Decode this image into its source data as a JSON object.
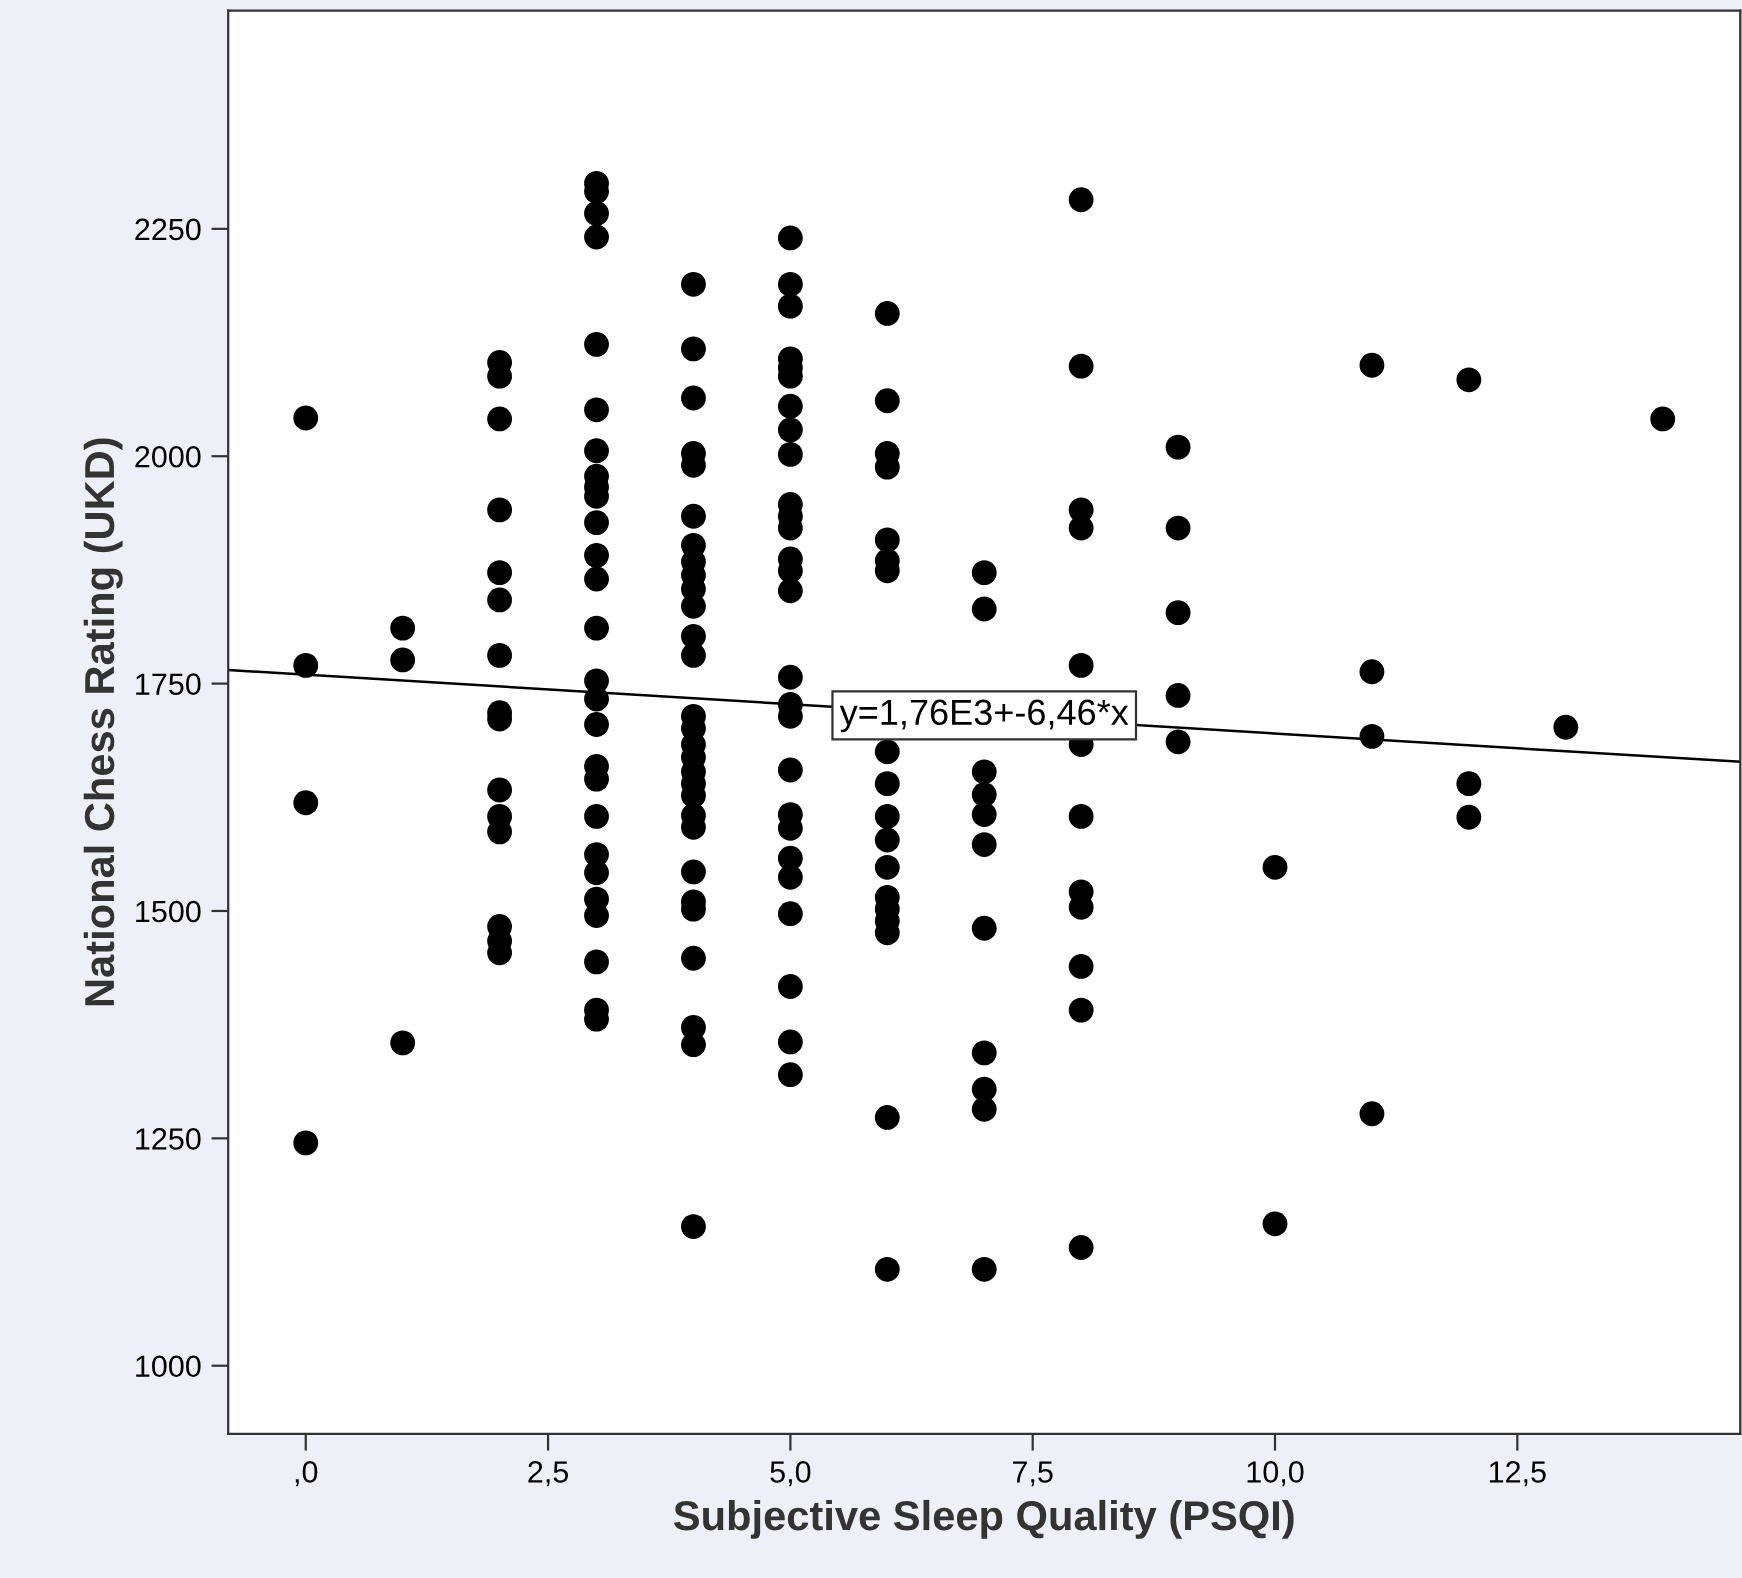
{
  "chart_data": {
    "type": "scatter",
    "xlabel": "Subjective Sleep Quality (PSQI)",
    "ylabel": "National Chess Rating (UKD)",
    "xlim": [
      -0.8,
      14.8
    ],
    "ylim": [
      925,
      2490
    ],
    "xticks": [
      {
        "value": 0,
        "label": ",0"
      },
      {
        "value": 2.5,
        "label": "2,5"
      },
      {
        "value": 5,
        "label": "5,0"
      },
      {
        "value": 7.5,
        "label": "7,5"
      },
      {
        "value": 10,
        "label": "10,0"
      },
      {
        "value": 12.5,
        "label": "12,5"
      }
    ],
    "yticks": [
      1000,
      1250,
      1500,
      1750,
      2000,
      2250
    ],
    "grid": false,
    "annotations": [
      {
        "text": "y=1,76E3+-6,46*x",
        "x": 7,
        "y": 1715
      }
    ],
    "series": [
      {
        "color": "#000000",
        "marker": "circle",
        "x": [
          0,
          0,
          0,
          0,
          1,
          1,
          1,
          2,
          2,
          2,
          2,
          2,
          2,
          2,
          2,
          2,
          2,
          2,
          2,
          2,
          2,
          2,
          3,
          3,
          3,
          3,
          3,
          3,
          3,
          3,
          3,
          3,
          3,
          3,
          3,
          3,
          3,
          3,
          3,
          3,
          3,
          3,
          3,
          3,
          3,
          3,
          3,
          3,
          3,
          4,
          4,
          4,
          4,
          4,
          4,
          4,
          4,
          4,
          4,
          4,
          4,
          4,
          4,
          4,
          4,
          4,
          4,
          4,
          4,
          4,
          4,
          4,
          4,
          4,
          4,
          4,
          4,
          4,
          5,
          5,
          5,
          5,
          5,
          5,
          5,
          5,
          5,
          5,
          5,
          5,
          5,
          5,
          5,
          5,
          5,
          5,
          5,
          5,
          5,
          5,
          5,
          5,
          5,
          5,
          5,
          6,
          6,
          6,
          6,
          6,
          6,
          6,
          6,
          6,
          6,
          6,
          6,
          6,
          6,
          6,
          6,
          6,
          6,
          7,
          7,
          7,
          7,
          7,
          7,
          7,
          7,
          7,
          7,
          7,
          8,
          8,
          8,
          8,
          8,
          8,
          8,
          8,
          8,
          8,
          8,
          8,
          9,
          9,
          9,
          9,
          9,
          10,
          10,
          11,
          11,
          11,
          11,
          12,
          12,
          12,
          13,
          14
        ],
        "values": [
          2042,
          1770,
          1619,
          1245,
          1811,
          1776,
          1355,
          2103,
          2088,
          2041,
          1941,
          1872,
          1842,
          1781,
          1718,
          1711,
          1633,
          1604,
          1587,
          1483,
          1467,
          1454,
          2300,
          2291,
          2267,
          2241,
          2123,
          2051,
          2006,
          1978,
          1966,
          1956,
          1927,
          1891,
          1865,
          1811,
          1753,
          1733,
          1705,
          1659,
          1645,
          1604,
          1562,
          1542,
          1513,
          1495,
          1444,
          1391,
          1381,
          2189,
          2118,
          2064,
          2003,
          1990,
          1934,
          1902,
          1884,
          1869,
          1854,
          1835,
          1802,
          1781,
          1714,
          1701,
          1683,
          1669,
          1653,
          1640,
          1627,
          1605,
          1592,
          1543,
          1510,
          1502,
          1448,
          1372,
          1353,
          1153,
          2240,
          2189,
          2165,
          2107,
          2097,
          2088,
          2055,
          2029,
          2002,
          1947,
          1934,
          1921,
          1887,
          1874,
          1852,
          1757,
          1727,
          1714,
          1655,
          1606,
          1591,
          1558,
          1537,
          1497,
          1417,
          1356,
          1320,
          2157,
          2061,
          2003,
          1988,
          1908,
          1885,
          1874,
          1675,
          1640,
          1604,
          1578,
          1548,
          1515,
          1502,
          1489,
          1476,
          1273,
          1106,
          1872,
          1832,
          1653,
          1628,
          1606,
          1573,
          1481,
          1344,
          1304,
          1282,
          1106,
          2282,
          2099,
          1941,
          1921,
          1770,
          1683,
          1604,
          1521,
          1504,
          1439,
          1391,
          1130,
          2010,
          1921,
          1828,
          1737,
          1686,
          1548,
          1156,
          2100,
          1763,
          1692,
          1277,
          2084,
          1640,
          1603,
          1702,
          2041
        ]
      },
      {
        "type": "line",
        "color": "#000000",
        "line_style": "solid",
        "x": [
          -0.8,
          14.8
        ],
        "values": [
          1765,
          1664
        ]
      }
    ]
  }
}
